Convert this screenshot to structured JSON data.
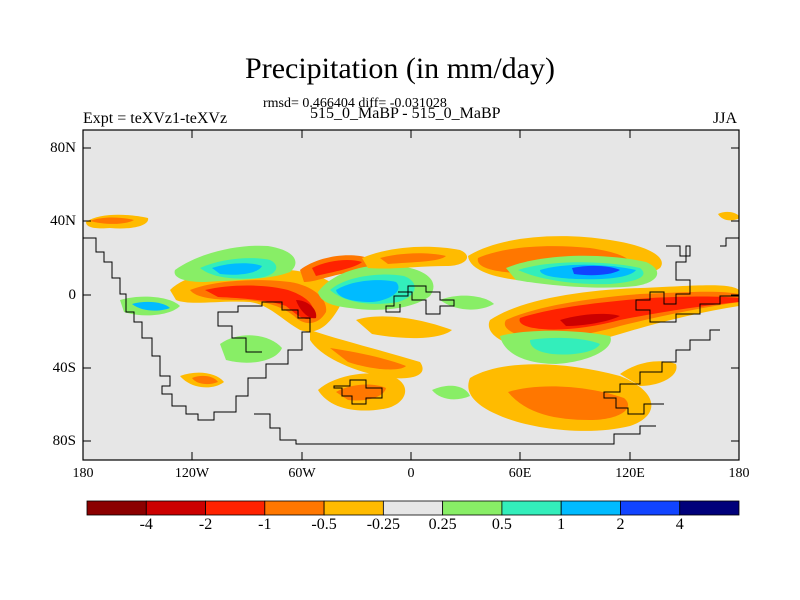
{
  "title": "Precipitation (in mm/day)",
  "stats": "rmsd= 0.466404 diff= -0.031028",
  "experiment": "Expt = teXVz1-teXVz",
  "case_label": "515_0_MaBP - 515_0_MaBP",
  "season": "JJA",
  "lat_labels": [
    "80N",
    "40N",
    "0",
    "40S",
    "80S"
  ],
  "lon_labels": [
    "180",
    "120W",
    "60W",
    "0",
    "60E",
    "120E",
    "180"
  ],
  "colorbar": {
    "levels": [
      "-4",
      "-2",
      "-1",
      "-0.5",
      "-0.25",
      "0.25",
      "0.5",
      "1",
      "2",
      "4"
    ],
    "colors": [
      "#8b0000",
      "#cc0000",
      "#ff2200",
      "#ff7700",
      "#ffbb00",
      "#e6e6e6",
      "#88ee66",
      "#33eebb",
      "#00bbff",
      "#1144ff",
      "#00007a"
    ]
  }
}
